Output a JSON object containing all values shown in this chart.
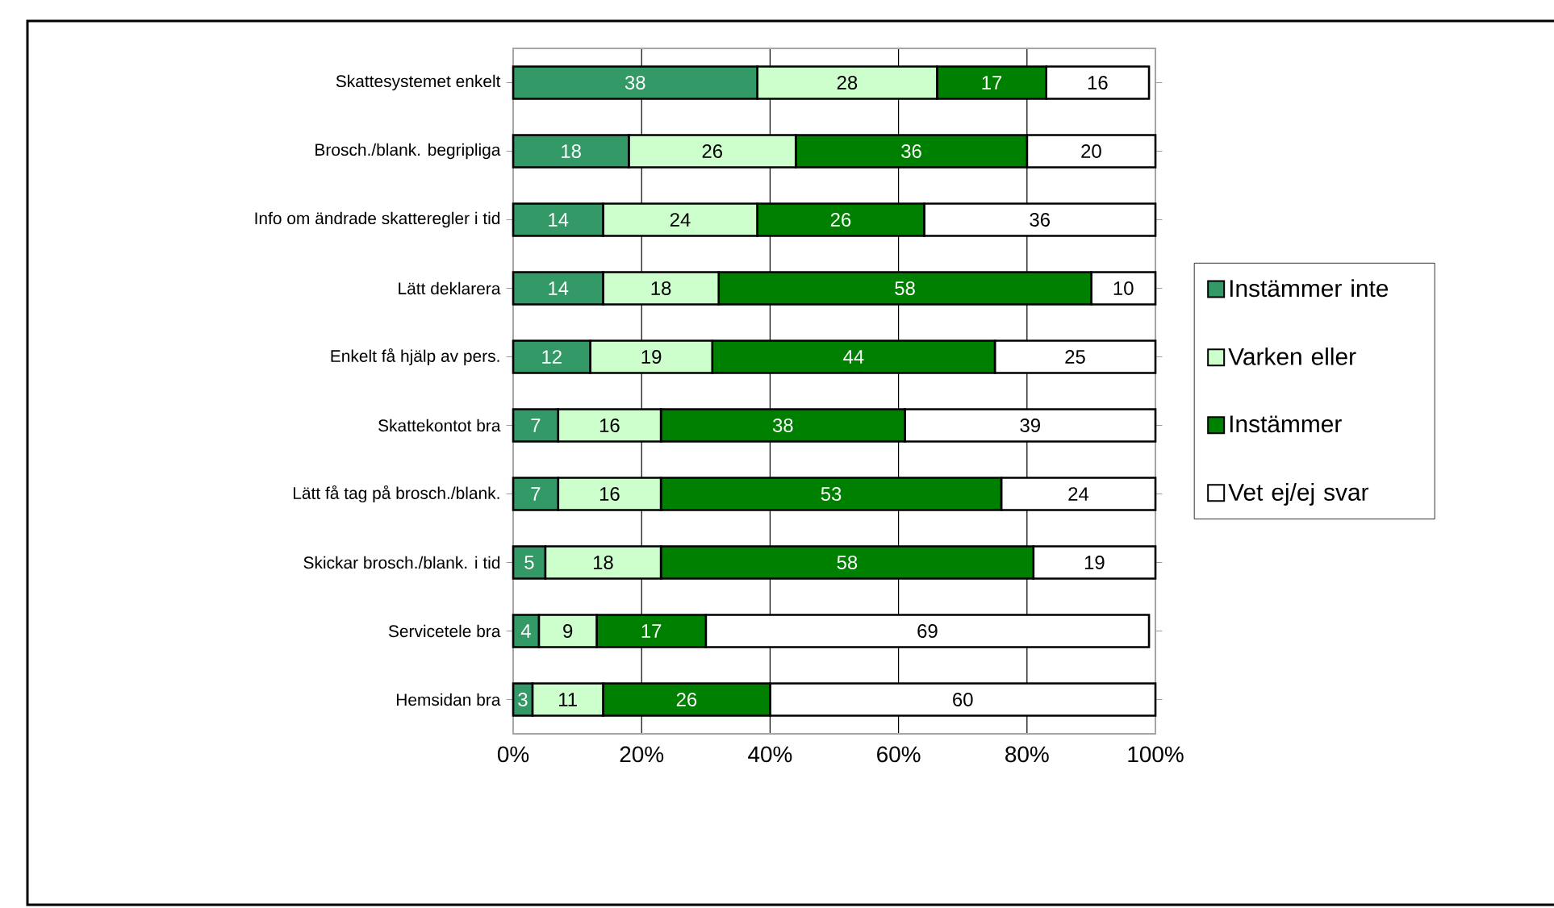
{
  "chart_data": {
    "type": "bar",
    "orientation": "horizontal",
    "stacked": true,
    "categories": [
      "Skattesystemet enkelt",
      "Brosch./blank. begripliga",
      "Info om ändrade skatteregler i tid",
      "Lätt deklarera",
      "Enkelt få hjälp av pers.",
      "Skattekontot bra",
      "Lätt få tag på brosch./blank.",
      "Skickar brosch./blank. i tid",
      "Servicetele bra",
      "Hemsidan bra"
    ],
    "series": [
      {
        "name": "Instämmer inte",
        "color": "#339966",
        "values": [
          38,
          18,
          14,
          14,
          12,
          7,
          7,
          5,
          4,
          3
        ]
      },
      {
        "name": "Varken eller",
        "color": "#ccffcc",
        "values": [
          28,
          26,
          24,
          18,
          19,
          16,
          16,
          18,
          9,
          11
        ]
      },
      {
        "name": "Instämmer",
        "color": "#008000",
        "values": [
          17,
          36,
          26,
          58,
          44,
          38,
          53,
          58,
          17,
          26
        ]
      },
      {
        "name": "Vet ej/ej svar",
        "color": "#ffffff",
        "values": [
          16,
          20,
          36,
          10,
          25,
          39,
          24,
          19,
          69,
          60
        ]
      }
    ],
    "xlim": [
      0,
      100
    ],
    "xticks": [
      {
        "value": 0,
        "label": "0%"
      },
      {
        "value": 20,
        "label": "20%"
      },
      {
        "value": 40,
        "label": "40%"
      },
      {
        "value": 60,
        "label": "60%"
      },
      {
        "value": 80,
        "label": "80%"
      },
      {
        "value": 100,
        "label": "100%"
      }
    ],
    "grid": "x",
    "legend": "right",
    "data_labels": true
  }
}
